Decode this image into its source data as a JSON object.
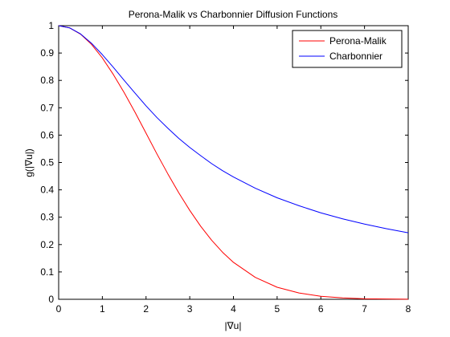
{
  "chart_data": {
    "type": "line",
    "title": "Perona-Malik vs Charbonnier Diffusion Functions",
    "xlabel": "|∇u|",
    "ylabel": "g(|∇u|)",
    "xlim": [
      0,
      8
    ],
    "ylim": [
      0,
      1
    ],
    "xticks": [
      "0",
      "1",
      "2",
      "3",
      "4",
      "5",
      "6",
      "7",
      "8"
    ],
    "yticks": [
      "0",
      "0.1",
      "0.2",
      "0.3",
      "0.4",
      "0.5",
      "0.6",
      "0.7",
      "0.8",
      "0.9",
      "1"
    ],
    "grid": false,
    "legend_position": "top-right",
    "x": [
      0,
      0.25,
      0.5,
      0.75,
      1,
      1.25,
      1.5,
      1.75,
      2,
      2.25,
      2.5,
      2.75,
      3,
      3.25,
      3.5,
      3.75,
      4,
      4.5,
      5,
      5.5,
      6,
      6.5,
      7,
      7.5,
      8
    ],
    "series": [
      {
        "name": "Perona-Malik",
        "color": "#ff0000",
        "values": [
          1,
          0.992,
          0.969,
          0.932,
          0.882,
          0.822,
          0.755,
          0.683,
          0.607,
          0.531,
          0.458,
          0.389,
          0.325,
          0.267,
          0.216,
          0.172,
          0.135,
          0.08,
          0.044,
          0.023,
          0.011,
          0.005,
          0.002,
          0.001,
          0.0003
        ]
      },
      {
        "name": "Charbonnier",
        "color": "#0000ff",
        "values": [
          1,
          0.992,
          0.97,
          0.936,
          0.894,
          0.848,
          0.8,
          0.753,
          0.707,
          0.664,
          0.625,
          0.588,
          0.555,
          0.525,
          0.496,
          0.47,
          0.447,
          0.406,
          0.371,
          0.342,
          0.316,
          0.294,
          0.275,
          0.258,
          0.243
        ]
      }
    ]
  }
}
